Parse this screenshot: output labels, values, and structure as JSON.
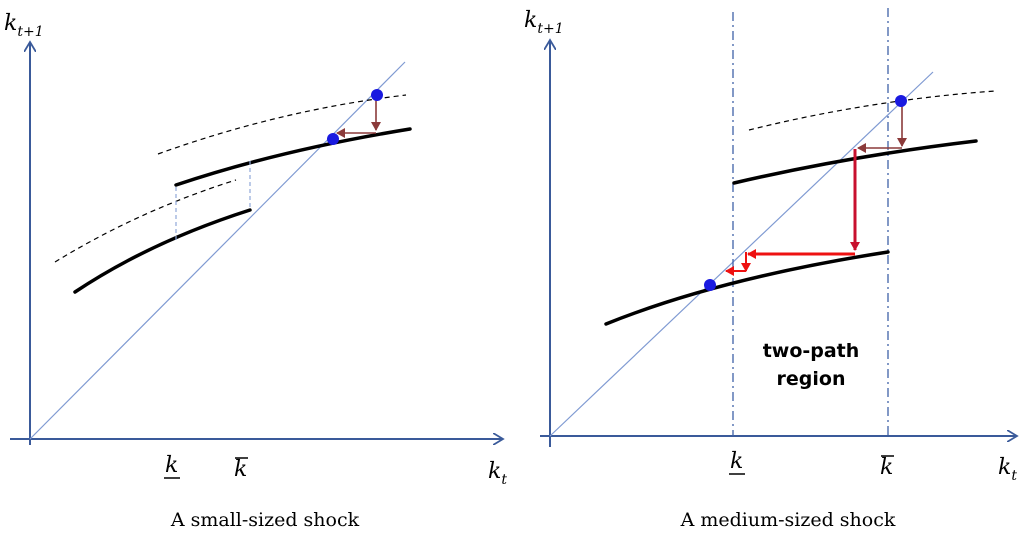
{
  "left_panel": {
    "y_axis_label": "k",
    "y_axis_sub": "t+1",
    "x_axis_label": "k",
    "x_axis_sub": "t",
    "k_lower_label": "k",
    "k_upper_label": "k",
    "caption": "A small-sized shock"
  },
  "right_panel": {
    "y_axis_label": "k",
    "y_axis_sub": "t+1",
    "x_axis_label": "k",
    "x_axis_sub": "t",
    "k_lower_label": "k",
    "k_upper_label": "k",
    "region_line1": "two-path",
    "region_line2": "region",
    "caption": "A medium-sized shock"
  },
  "colors": {
    "axis": "#3a5a9a",
    "steady_state_dot": "#1a1ae0",
    "small_adjust_arrow": "#8b3a3a",
    "large_path_arrow": "#ee1111",
    "jump_arrow": "#c8102e"
  }
}
